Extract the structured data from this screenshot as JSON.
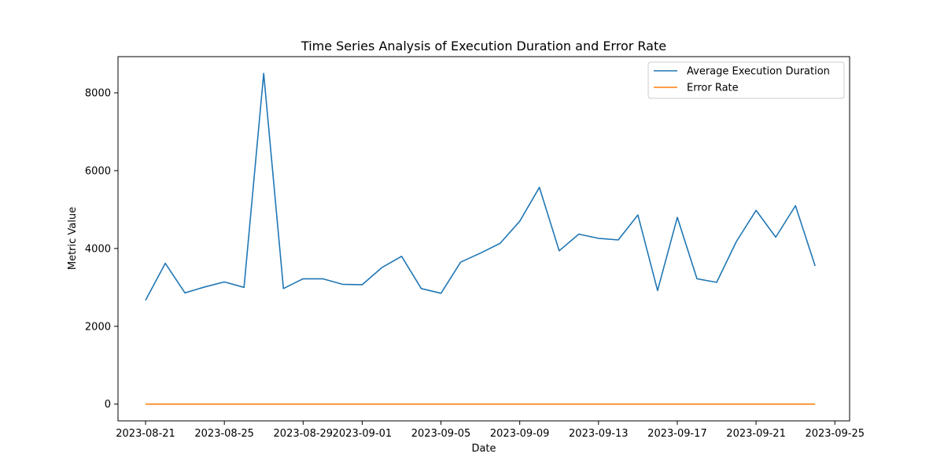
{
  "chart_data": {
    "type": "line",
    "title": "Time Series Analysis of Execution Duration and Error Rate",
    "xlabel": "Date",
    "ylabel": "Metric Value",
    "x": [
      "2023-08-21",
      "2023-08-22",
      "2023-08-23",
      "2023-08-24",
      "2023-08-25",
      "2023-08-26",
      "2023-08-27",
      "2023-08-28",
      "2023-08-29",
      "2023-08-30",
      "2023-08-31",
      "2023-09-01",
      "2023-09-02",
      "2023-09-03",
      "2023-09-04",
      "2023-09-05",
      "2023-09-06",
      "2023-09-07",
      "2023-09-08",
      "2023-09-09",
      "2023-09-10",
      "2023-09-11",
      "2023-09-12",
      "2023-09-13",
      "2023-09-14",
      "2023-09-15",
      "2023-09-16",
      "2023-09-17",
      "2023-09-18",
      "2023-09-19",
      "2023-09-20",
      "2023-09-21",
      "2023-09-22",
      "2023-09-23",
      "2023-09-24"
    ],
    "series": [
      {
        "name": "Average Execution Duration",
        "color": "#1f77b4",
        "values": [
          2670,
          3620,
          2860,
          3010,
          3140,
          3000,
          8500,
          2970,
          3220,
          3220,
          3080,
          3070,
          3510,
          3800,
          2970,
          2850,
          3650,
          3880,
          4130,
          4700,
          5570,
          3940,
          4370,
          4260,
          4220,
          4860,
          2920,
          4800,
          3220,
          3130,
          4180,
          4980,
          4290,
          5100,
          3550
        ]
      },
      {
        "name": "Error Rate",
        "color": "#ff7f0e",
        "values": [
          0,
          0,
          0,
          0,
          0,
          0,
          0,
          0,
          0,
          0,
          0,
          0,
          0,
          0,
          0,
          0,
          0,
          0,
          0,
          0,
          0,
          0,
          0,
          0,
          0,
          0,
          0,
          0,
          0,
          0,
          0,
          0,
          0,
          0,
          0
        ]
      }
    ],
    "xticks": [
      "2023-08-21",
      "2023-08-25",
      "2023-08-29",
      "2023-09-01",
      "2023-09-05",
      "2023-09-09",
      "2023-09-13",
      "2023-09-17",
      "2023-09-21",
      "2023-09-25"
    ],
    "yticks": [
      0,
      2000,
      4000,
      6000,
      8000
    ],
    "xlim": [
      "2023-08-19",
      "2023-09-25"
    ],
    "ylim": [
      -430,
      8930
    ],
    "grid": false,
    "legend": "top-right"
  }
}
